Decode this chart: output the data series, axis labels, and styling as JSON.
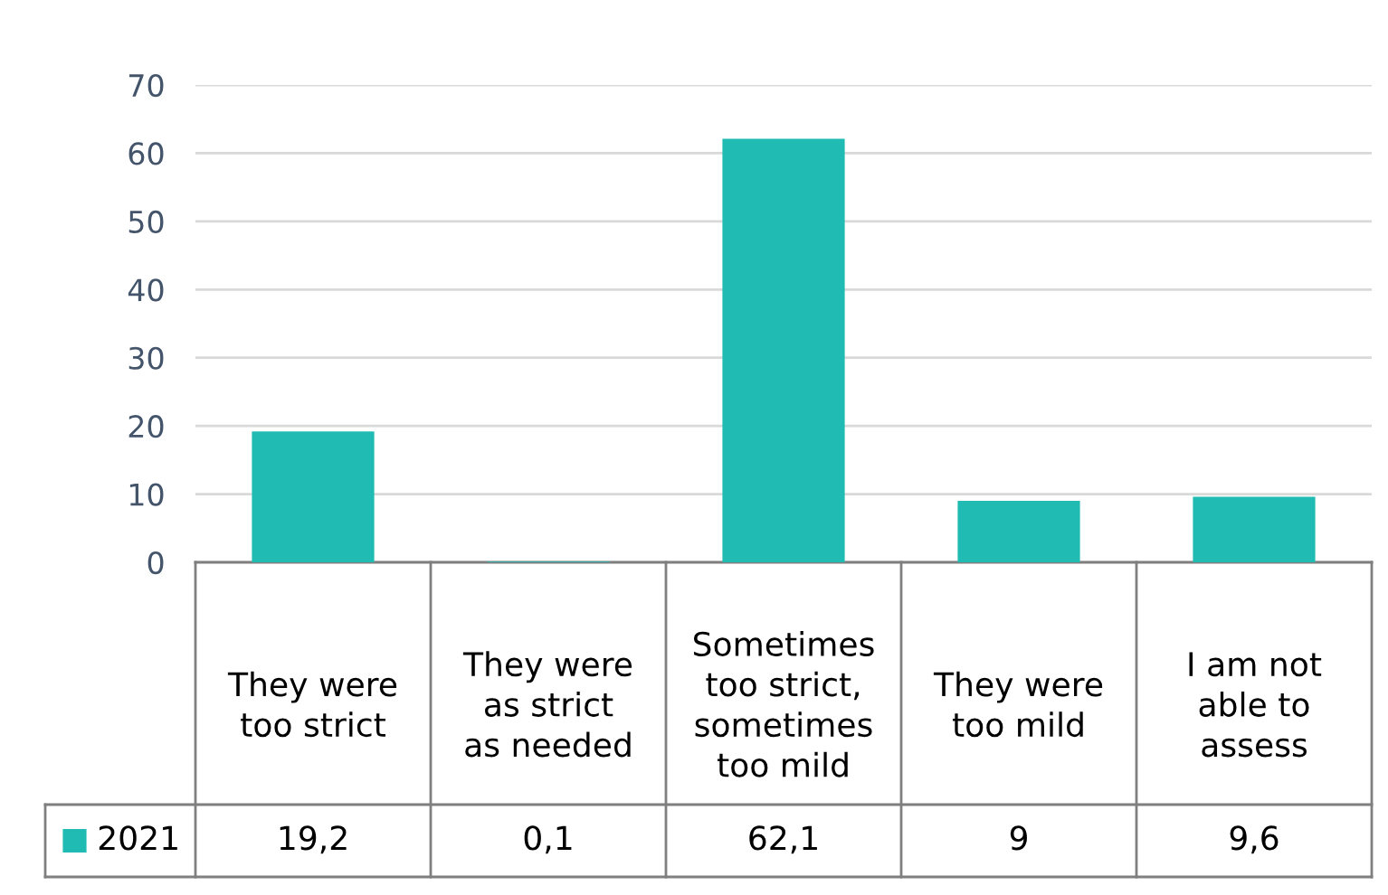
{
  "chart_data": {
    "type": "bar",
    "categories": [
      "They were\ntoo strict",
      "They were\nas strict\nas needed",
      "Sometimes\ntoo strict,\nsometimes\ntoo mild",
      "They were\ntoo mild",
      "I am not\nable to\nassess"
    ],
    "series": [
      {
        "name": "2021",
        "color": "#20bbb3",
        "values": [
          19.2,
          0.1,
          62.1,
          9,
          9.6
        ],
        "value_labels": [
          "19,2",
          "0,1",
          "62,1",
          "9",
          "9,6"
        ]
      }
    ],
    "ylim": [
      0,
      70
    ],
    "yticks": [
      0,
      10,
      20,
      30,
      40,
      50,
      60,
      70
    ],
    "grid": "y",
    "legend": "bottom"
  }
}
